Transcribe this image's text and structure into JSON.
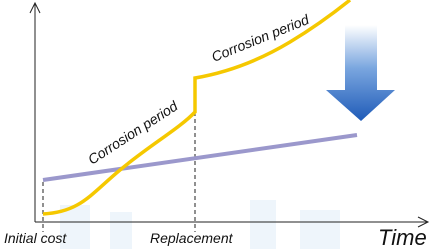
{
  "curve_labels": [
    "Corrosion period",
    "Corrosion period"
  ],
  "x_labels": [
    "Initial cost",
    "Replacement"
  ],
  "axis_label": "Time"
}
